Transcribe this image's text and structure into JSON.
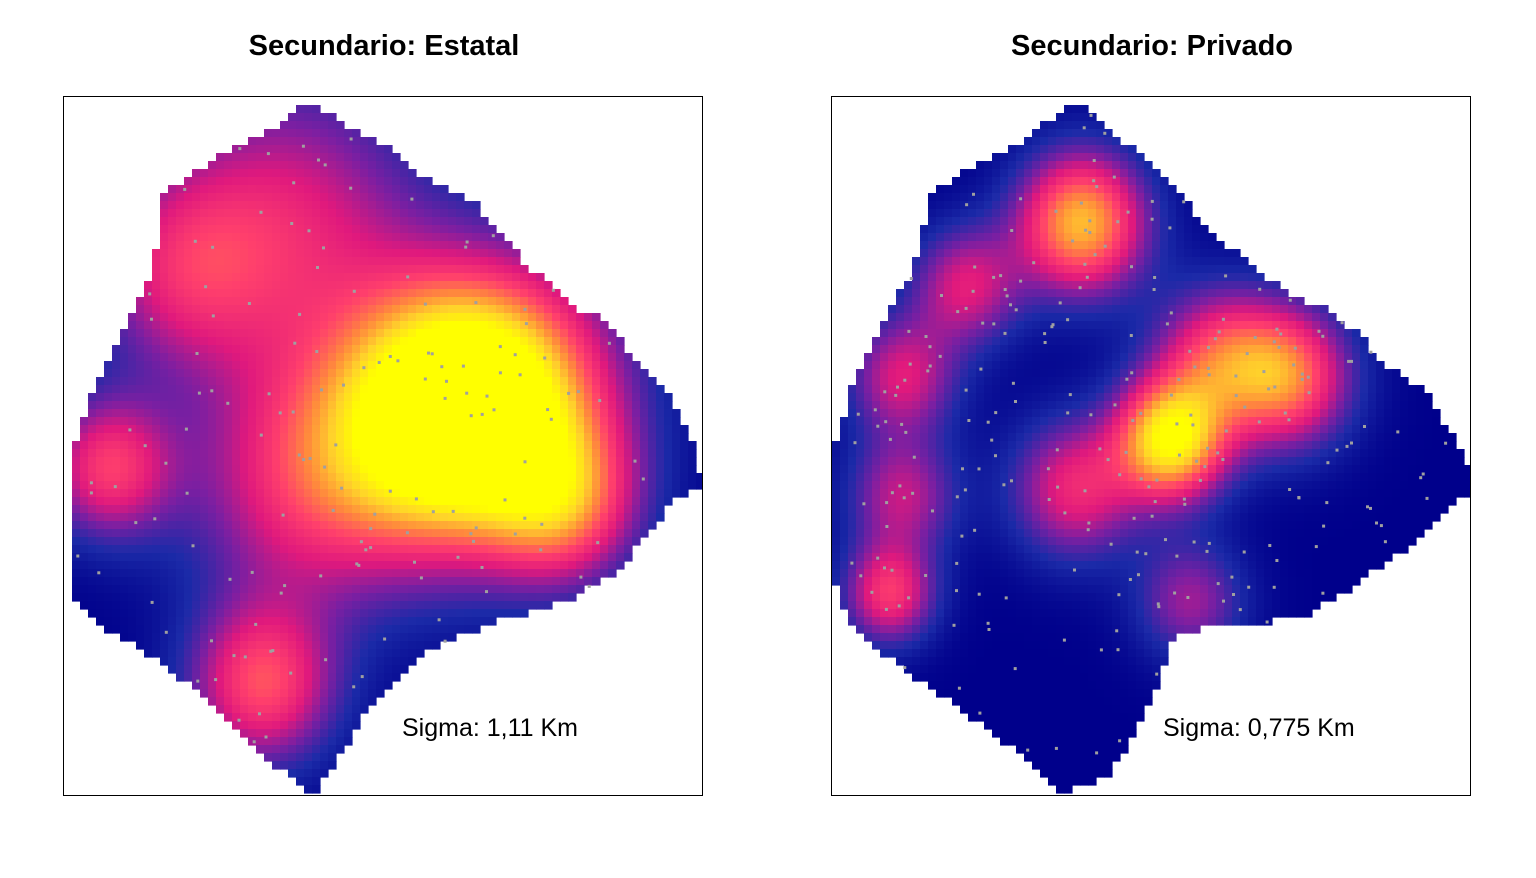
{
  "chart_data": [
    {
      "type": "heatmap",
      "title": "Secundario: Estatal",
      "annotation": "Sigma: 1,11 Km",
      "colormap": [
        "#00008b",
        "#1b2aa8",
        "#7a1fa2",
        "#e0197d",
        "#ff3f6c",
        "#ff8a3c",
        "#ffd42a",
        "#ffff00"
      ],
      "points_color": "#a0a0a0",
      "hotspots": [
        {
          "x": 0.67,
          "y": 0.43,
          "intensity": 1.0,
          "spread": 0.13
        },
        {
          "x": 0.58,
          "y": 0.47,
          "intensity": 0.7,
          "spread": 0.12
        },
        {
          "x": 0.78,
          "y": 0.58,
          "intensity": 0.55,
          "spread": 0.08
        },
        {
          "x": 0.38,
          "y": 0.55,
          "intensity": 0.5,
          "spread": 0.13
        },
        {
          "x": 0.07,
          "y": 0.53,
          "intensity": 0.55,
          "spread": 0.07
        },
        {
          "x": 0.31,
          "y": 0.84,
          "intensity": 0.6,
          "spread": 0.08
        },
        {
          "x": 0.35,
          "y": 0.18,
          "intensity": 0.45,
          "spread": 0.15
        },
        {
          "x": 0.18,
          "y": 0.25,
          "intensity": 0.35,
          "spread": 0.1
        }
      ]
    },
    {
      "type": "heatmap",
      "title": "Secundario: Privado",
      "annotation": "Sigma: 0,775 Km",
      "colormap": [
        "#00008b",
        "#1b2aa8",
        "#7a1fa2",
        "#e0197d",
        "#ff3f6c",
        "#ff8a3c",
        "#ffd42a",
        "#ffff00"
      ],
      "points_color": "#a0a0a0",
      "hotspots": [
        {
          "x": 0.39,
          "y": 0.18,
          "intensity": 0.85,
          "spread": 0.07
        },
        {
          "x": 0.53,
          "y": 0.49,
          "intensity": 1.0,
          "spread": 0.06
        },
        {
          "x": 0.71,
          "y": 0.4,
          "intensity": 0.7,
          "spread": 0.07
        },
        {
          "x": 0.6,
          "y": 0.37,
          "intensity": 0.5,
          "spread": 0.07
        },
        {
          "x": 0.38,
          "y": 0.56,
          "intensity": 0.5,
          "spread": 0.07
        },
        {
          "x": 0.11,
          "y": 0.4,
          "intensity": 0.45,
          "spread": 0.06
        },
        {
          "x": 0.11,
          "y": 0.57,
          "intensity": 0.4,
          "spread": 0.06
        },
        {
          "x": 0.09,
          "y": 0.71,
          "intensity": 0.55,
          "spread": 0.05
        },
        {
          "x": 0.21,
          "y": 0.27,
          "intensity": 0.45,
          "spread": 0.06
        },
        {
          "x": 0.56,
          "y": 0.72,
          "intensity": 0.35,
          "spread": 0.06
        }
      ]
    }
  ]
}
